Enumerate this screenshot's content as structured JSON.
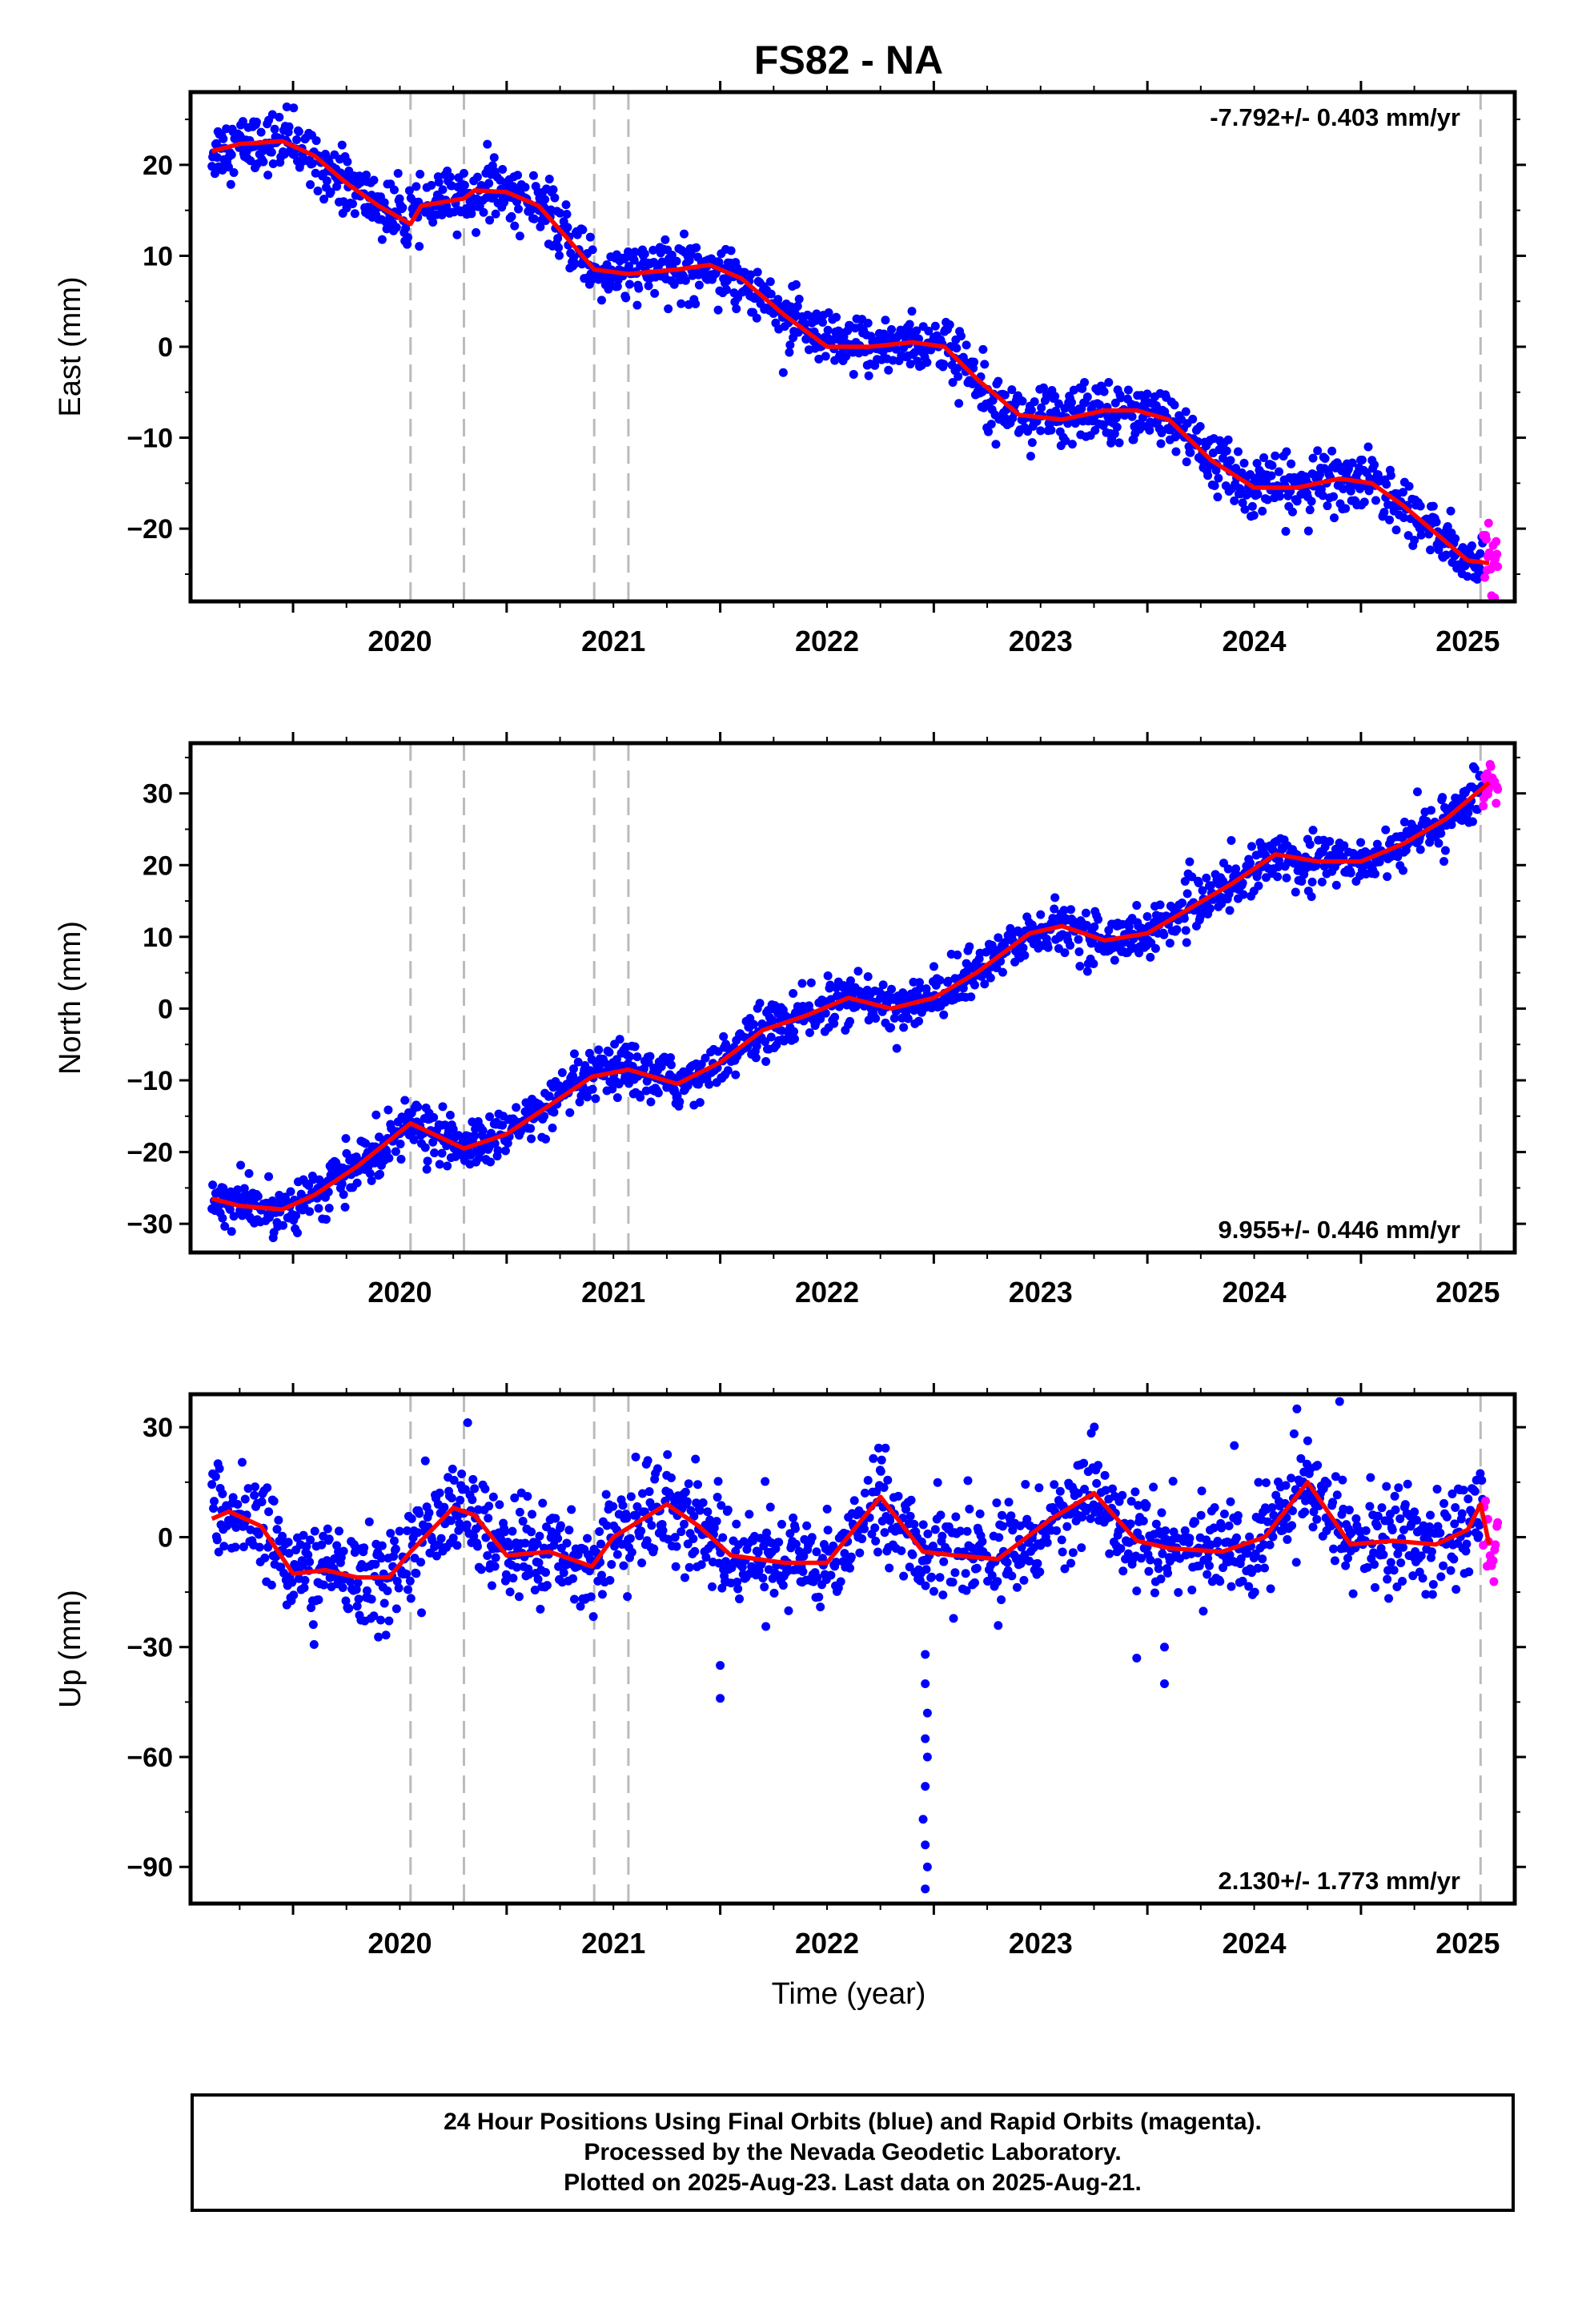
{
  "title": "FS82 - NA",
  "xlabel": "Time (year)",
  "colors": {
    "final": "#0000ff",
    "rapid": "#ff00ff",
    "model": "#ff0000",
    "steps": "#bbbbbb"
  },
  "footer": {
    "line1": "24 Hour Positions Using Final Orbits (blue) and Rapid Orbits (magenta).",
    "line2": "Processed by the Nevada Geodetic Laboratory.",
    "line3": "Plotted on 2025-Aug-23. Last data on 2025-Aug-21."
  },
  "chart_data": [
    {
      "type": "scatter",
      "component": "east",
      "ylabel": "East (mm)",
      "rate_label": "-7.792+/- 0.403 mm/yr",
      "xlim": [
        2019.52,
        2025.72
      ],
      "ylim": [
        -28,
        28
      ],
      "xticks": [
        2020,
        2021,
        2022,
        2023,
        2024,
        2025
      ],
      "yticks": [
        -20,
        -10,
        0,
        10,
        20
      ],
      "step_lines": [
        2020.55,
        2020.8,
        2021.41,
        2021.57,
        2025.56
      ],
      "rapid_start": 2025.57,
      "data_end": 2025.64,
      "model": {
        "x": [
          2019.62,
          2019.75,
          2019.95,
          2020.1,
          2020.25,
          2020.4,
          2020.55,
          2020.6,
          2020.8,
          2020.85,
          2021.0,
          2021.15,
          2021.3,
          2021.41,
          2021.57,
          2021.8,
          2021.95,
          2022.1,
          2022.3,
          2022.5,
          2022.7,
          2022.9,
          2023.05,
          2023.2,
          2023.4,
          2023.6,
          2023.8,
          2023.95,
          2024.1,
          2024.3,
          2024.5,
          2024.7,
          2024.9,
          2025.05,
          2025.2,
          2025.35,
          2025.5,
          2025.6
        ],
        "y": [
          21.5,
          22.3,
          22.6,
          21.0,
          18.0,
          15.5,
          13.5,
          15.5,
          16.3,
          17.2,
          17.0,
          15.5,
          11.5,
          8.5,
          8.0,
          8.5,
          9.0,
          7.5,
          3.5,
          0.0,
          0.0,
          0.5,
          0.0,
          -3.5,
          -7.5,
          -8.0,
          -7.0,
          -7.0,
          -8.0,
          -12.5,
          -15.5,
          -15.5,
          -14.5,
          -15.0,
          -17.5,
          -20.5,
          -23.5,
          -23.8
        ]
      },
      "noise": 1.6
    },
    {
      "type": "scatter",
      "component": "north",
      "ylabel": "North (mm)",
      "rate_label": "9.955+/- 0.446 mm/yr",
      "xlim": [
        2019.52,
        2025.72
      ],
      "ylim": [
        -34,
        37
      ],
      "xticks": [
        2020,
        2021,
        2022,
        2023,
        2024,
        2025
      ],
      "yticks": [
        -30,
        -20,
        -10,
        0,
        10,
        20,
        30
      ],
      "step_lines": [
        2020.55,
        2020.8,
        2021.41,
        2021.57,
        2025.56
      ],
      "rapid_start": 2025.57,
      "data_end": 2025.64,
      "model": {
        "x": [
          2019.62,
          2019.75,
          2019.95,
          2020.1,
          2020.3,
          2020.55,
          2020.8,
          2021.0,
          2021.2,
          2021.4,
          2021.57,
          2021.8,
          2022.0,
          2022.2,
          2022.4,
          2022.6,
          2022.8,
          2023.0,
          2023.2,
          2023.45,
          2023.6,
          2023.8,
          2024.0,
          2024.2,
          2024.4,
          2024.6,
          2024.8,
          2025.0,
          2025.2,
          2025.4,
          2025.6
        ],
        "y": [
          -26.5,
          -27.5,
          -28.0,
          -26.0,
          -22.0,
          -16.0,
          -19.5,
          -17.5,
          -13.5,
          -9.5,
          -8.5,
          -10.5,
          -7.5,
          -3.0,
          -1.0,
          1.5,
          0.0,
          1.5,
          5.0,
          10.5,
          11.5,
          9.5,
          10.5,
          14.0,
          17.5,
          21.5,
          20.5,
          20.5,
          23.0,
          26.5,
          31.5
        ]
      },
      "noise": 1.7
    },
    {
      "type": "scatter",
      "component": "up",
      "ylabel": "Up (mm)",
      "rate_label": "2.130+/- 1.773 mm/yr",
      "xlim": [
        2019.52,
        2025.72
      ],
      "ylim": [
        -100,
        39
      ],
      "xticks": [
        2020,
        2021,
        2022,
        2023,
        2024,
        2025
      ],
      "yticks": [
        -90,
        -60,
        -30,
        0,
        30
      ],
      "step_lines": [
        2020.55,
        2020.8,
        2021.41,
        2021.57,
        2025.56
      ],
      "rapid_start": 2025.57,
      "data_end": 2025.64,
      "model": {
        "x": [
          2019.62,
          2019.7,
          2019.85,
          2020.0,
          2020.15,
          2020.3,
          2020.45,
          2020.55,
          2020.75,
          2020.85,
          2021.0,
          2021.2,
          2021.4,
          2021.5,
          2021.75,
          2021.9,
          2022.05,
          2022.3,
          2022.5,
          2022.75,
          2022.95,
          2023.1,
          2023.3,
          2023.55,
          2023.75,
          2023.95,
          2024.1,
          2024.35,
          2024.55,
          2024.75,
          2024.95,
          2025.15,
          2025.35,
          2025.5,
          2025.56,
          2025.6
        ],
        "y": [
          5,
          7,
          3,
          -10,
          -9,
          -11,
          -11,
          -4,
          8,
          6,
          -5,
          -4,
          -8,
          0,
          9,
          3,
          -5,
          -7,
          -7,
          11,
          -4,
          -5,
          -6,
          5,
          12,
          -1,
          -3,
          -4,
          0,
          15,
          -2,
          -1,
          -2,
          2,
          9,
          -2
        ]
      },
      "noise": 6.5,
      "outliers": [
        {
          "x": 2022.0,
          "y": -35
        },
        {
          "x": 2022.0,
          "y": -44
        },
        {
          "x": 2022.96,
          "y": -32
        },
        {
          "x": 2022.96,
          "y": -40
        },
        {
          "x": 2022.97,
          "y": -48
        },
        {
          "x": 2022.96,
          "y": -55
        },
        {
          "x": 2022.97,
          "y": -60
        },
        {
          "x": 2022.96,
          "y": -68
        },
        {
          "x": 2022.95,
          "y": -77
        },
        {
          "x": 2022.96,
          "y": -84
        },
        {
          "x": 2022.97,
          "y": -90
        },
        {
          "x": 2022.96,
          "y": -96
        },
        {
          "x": 2023.95,
          "y": -33
        },
        {
          "x": 2024.08,
          "y": -30
        },
        {
          "x": 2024.08,
          "y": -40
        },
        {
          "x": 2024.9,
          "y": 37
        },
        {
          "x": 2024.7,
          "y": 35
        }
      ]
    }
  ]
}
